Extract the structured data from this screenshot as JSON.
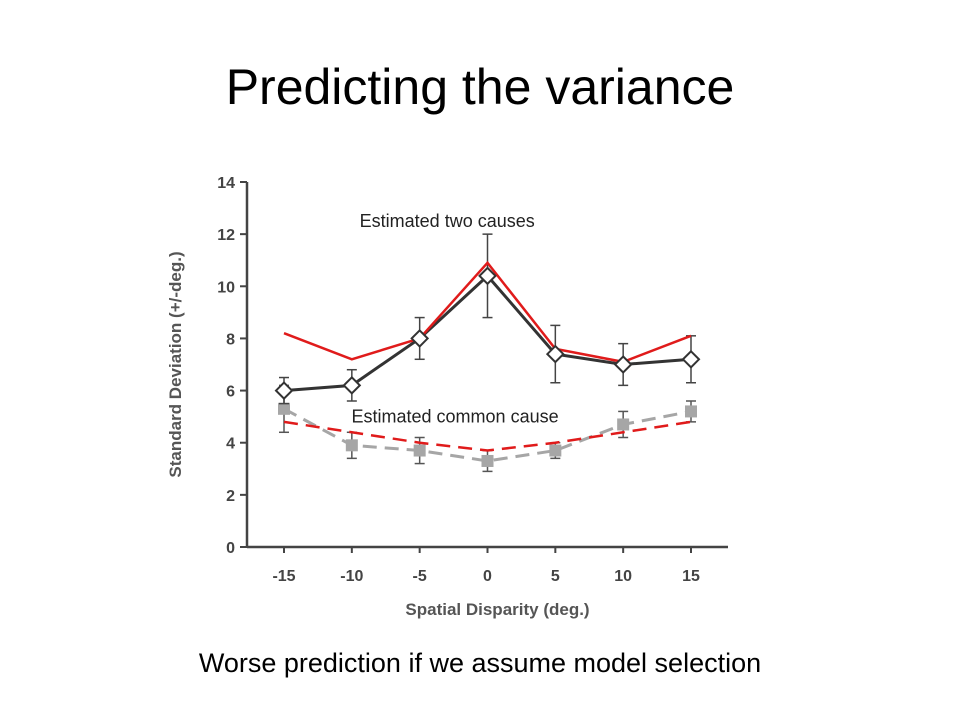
{
  "title": "Predicting the variance",
  "caption": "Worse prediction if we assume model selection",
  "colors": {
    "data_black": "#333333",
    "model_red": "#e01b1b",
    "data_gray": "#a6a6a6",
    "axis": "#444444"
  },
  "chart_data": {
    "type": "line",
    "xlabel": "Spatial Disparity (deg.)",
    "ylabel": "Standard Deviation (+/-deg.)",
    "ylim": [
      0,
      14
    ],
    "yticks": [
      0,
      2,
      4,
      6,
      8,
      10,
      12,
      14
    ],
    "x": [
      -15,
      -10,
      -5,
      0,
      5,
      10,
      15
    ],
    "x_tick_labels": [
      "-15",
      "-10",
      "-5",
      "0",
      "5",
      "10",
      "15"
    ],
    "grid": false,
    "annotations": [
      {
        "text": "Estimated two causes",
        "x": -5,
        "y": 12.5
      },
      {
        "text": "Estimated  common cause",
        "x": -5.6,
        "y": 5
      }
    ],
    "series": [
      {
        "style": "black-diamond-markers",
        "color": "#333333",
        "values": [
          6.0,
          6.2,
          8.0,
          10.4,
          7.4,
          7.0,
          7.2
        ],
        "errors": [
          0.5,
          0.6,
          0.8,
          1.6,
          1.1,
          0.8,
          0.9
        ]
      },
      {
        "style": "red-solid",
        "color": "#e01b1b",
        "values": [
          8.2,
          7.2,
          8.0,
          10.9,
          7.6,
          7.1,
          8.1
        ]
      },
      {
        "style": "gray-dashed-square-markers",
        "color": "#a6a6a6",
        "values": [
          5.3,
          3.9,
          3.7,
          3.3,
          3.7,
          4.7,
          5.2
        ],
        "errors": [
          0.9,
          0.5,
          0.5,
          0.4,
          0.3,
          0.5,
          0.4
        ]
      },
      {
        "style": "red-dashed",
        "color": "#e01b1b",
        "values": [
          4.8,
          4.4,
          4.0,
          3.7,
          4.0,
          4.4,
          4.8
        ]
      }
    ]
  }
}
